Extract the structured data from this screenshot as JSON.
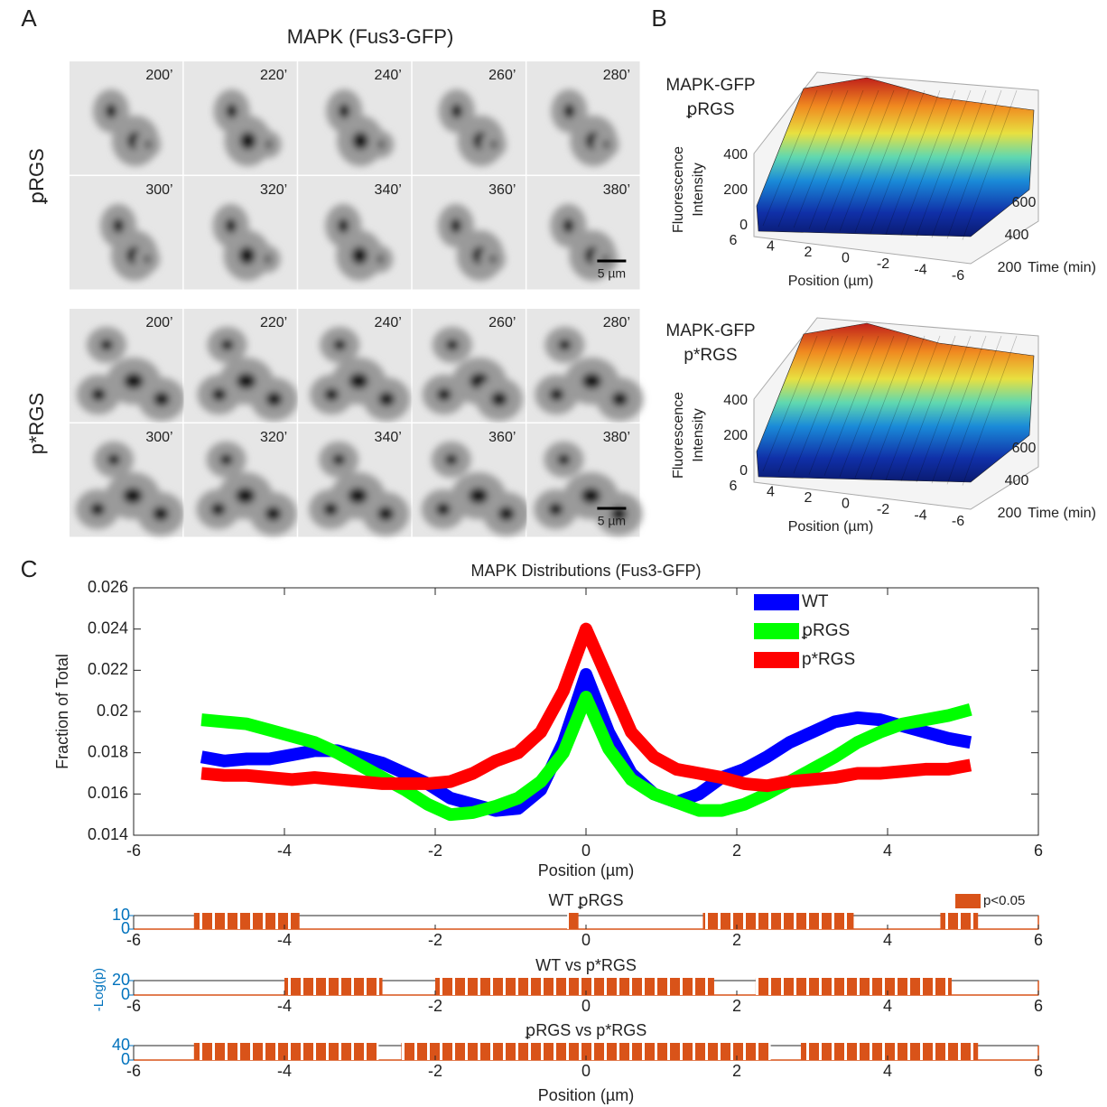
{
  "panel_labels": [
    "A",
    "B",
    "C"
  ],
  "panel_a": {
    "title": "MAPK (Fus3-GFP)",
    "strains": [
      {
        "name": "ꝑRGS",
        "times": [
          "200’",
          "220’",
          "240’",
          "260’",
          "280’",
          "300’",
          "320’",
          "340’",
          "360’",
          "380’"
        ]
      },
      {
        "name": "p*RGS",
        "times": [
          "200’",
          "220’",
          "240’",
          "260’",
          "280’",
          "300’",
          "320’",
          "340’",
          "360’",
          "380’"
        ]
      }
    ],
    "scale_bar": "5 µm"
  },
  "panel_b": [
    {
      "title_lines": [
        "MAPK-GFP",
        "ꝑRGS"
      ],
      "z_label_lines": [
        "Fluorescence",
        "Intensity"
      ],
      "z_ticks": [
        0,
        200,
        400
      ],
      "x_label": "Position (µm)",
      "x_ticks": [
        6,
        4,
        2,
        0,
        -2,
        -4,
        -6
      ],
      "y_label": "Time (min)",
      "y_ticks": [
        200,
        400,
        600
      ]
    },
    {
      "title_lines": [
        "MAPK-GFP",
        "p*RGS"
      ],
      "z_label_lines": [
        "Fluorescence",
        "Intensity"
      ],
      "z_ticks": [
        0,
        200,
        400
      ],
      "x_label": "Position (µm)",
      "x_ticks": [
        6,
        4,
        2,
        0,
        -2,
        -4,
        -6
      ],
      "y_label": "Time (min)",
      "y_ticks": [
        200,
        400,
        600
      ]
    }
  ],
  "chart_data": [
    {
      "type": "line",
      "title": "MAPK Distributions (Fus3-GFP)",
      "xlabel": "Position (µm)",
      "ylabel": "Fraction of Total",
      "x": [
        -5.1,
        -4.8,
        -4.5,
        -4.2,
        -3.9,
        -3.6,
        -3.3,
        -3.0,
        -2.7,
        -2.4,
        -2.1,
        -1.8,
        -1.5,
        -1.2,
        -0.9,
        -0.6,
        -0.3,
        0,
        0.3,
        0.6,
        0.9,
        1.2,
        1.5,
        1.8,
        2.1,
        2.4,
        2.7,
        3.0,
        3.3,
        3.6,
        3.9,
        4.2,
        4.5,
        4.8,
        5.1
      ],
      "series": [
        {
          "name": "WT",
          "color": "#0000ff",
          "values": [
            0.0178,
            0.0176,
            0.0177,
            0.0177,
            0.0179,
            0.0181,
            0.0181,
            0.0178,
            0.0175,
            0.017,
            0.0165,
            0.0158,
            0.0155,
            0.0152,
            0.0153,
            0.0162,
            0.0185,
            0.0218,
            0.019,
            0.017,
            0.016,
            0.0156,
            0.016,
            0.0168,
            0.0172,
            0.0178,
            0.0185,
            0.019,
            0.0195,
            0.0197,
            0.0196,
            0.0193,
            0.019,
            0.0187,
            0.0185
          ]
        },
        {
          "name": "ꝑRGS",
          "color": "#00ff00",
          "values": [
            0.0196,
            0.0195,
            0.0194,
            0.0191,
            0.0188,
            0.0185,
            0.018,
            0.0174,
            0.0168,
            0.0162,
            0.0155,
            0.015,
            0.0151,
            0.0154,
            0.0158,
            0.0166,
            0.018,
            0.0207,
            0.0182,
            0.0167,
            0.016,
            0.0156,
            0.0152,
            0.0152,
            0.0155,
            0.016,
            0.0166,
            0.0172,
            0.0178,
            0.0185,
            0.019,
            0.0194,
            0.0196,
            0.0198,
            0.0201
          ]
        },
        {
          "name": "p*RGS",
          "color": "#ff0000",
          "values": [
            0.017,
            0.0169,
            0.0169,
            0.0168,
            0.0167,
            0.0168,
            0.0167,
            0.0166,
            0.0165,
            0.0165,
            0.0165,
            0.0166,
            0.017,
            0.0176,
            0.018,
            0.019,
            0.021,
            0.024,
            0.0215,
            0.019,
            0.0178,
            0.0172,
            0.017,
            0.0168,
            0.0165,
            0.0164,
            0.0166,
            0.0167,
            0.0168,
            0.017,
            0.017,
            0.0171,
            0.0172,
            0.0172,
            0.0174
          ]
        }
      ],
      "xlim": [
        -6,
        6
      ],
      "ylim": [
        0.014,
        0.026
      ],
      "xticks": [
        -6,
        -4,
        -2,
        0,
        2,
        4,
        6
      ],
      "yticks": [
        0.014,
        0.016,
        0.018,
        0.02,
        0.022,
        0.024,
        0.026
      ],
      "legend": "upper right"
    },
    {
      "type": "span",
      "title": "WT ꝑRGS",
      "color": "#d95319",
      "legend_label": "p<0.05",
      "spans": [
        [
          -5.2,
          -3.8
        ],
        [
          -0.25,
          -0.1
        ],
        [
          1.55,
          3.55
        ],
        [
          4.7,
          5.2
        ]
      ],
      "xlim": [
        -6,
        6
      ],
      "xticks": [
        -6,
        -4,
        -2,
        0,
        2,
        4,
        6
      ],
      "ylim": [
        0,
        10
      ],
      "yticks": [
        0,
        10
      ]
    },
    {
      "type": "span",
      "title": "WT vs p*RGS",
      "ylabel": "-Log(p)",
      "color": "#d95319",
      "spans": [
        [
          -4.0,
          -2.7
        ],
        [
          -2.0,
          1.7
        ],
        [
          2.25,
          4.85
        ]
      ],
      "xlim": [
        -6,
        6
      ],
      "xticks": [
        -6,
        -4,
        -2,
        0,
        2,
        4,
        6
      ],
      "ylim": [
        0,
        20
      ],
      "yticks": [
        0,
        20
      ]
    },
    {
      "type": "span",
      "title": "ꝑRGS vs p*RGS",
      "xlabel": "Position (µm)",
      "color": "#d95319",
      "spans": [
        [
          -5.2,
          -2.75
        ],
        [
          -2.45,
          2.45
        ],
        [
          2.85,
          5.2
        ]
      ],
      "xlim": [
        -6,
        6
      ],
      "xticks": [
        -6,
        -4,
        -2,
        0,
        2,
        4,
        6
      ],
      "ylim": [
        0,
        40
      ],
      "yticks": [
        0,
        40
      ]
    }
  ]
}
